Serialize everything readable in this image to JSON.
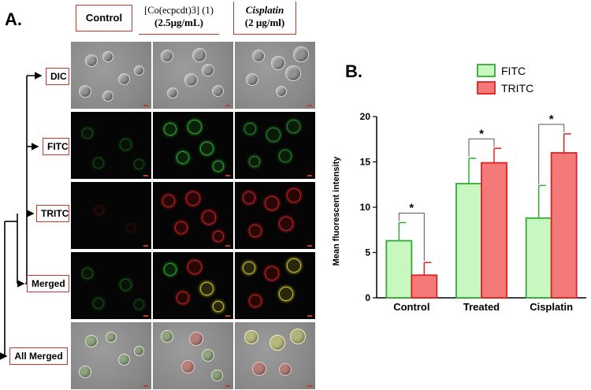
{
  "panel_a_label": "A.",
  "panel_b_label": "B.",
  "column_headers": {
    "control": "Control",
    "complex_line1": "[Co(ecpcdt)3] (1)",
    "complex_line2": "(2.5µg/mL)",
    "cisplatin_line1": "Cisplatin",
    "cisplatin_line2": "(2 µg/ml)"
  },
  "row_labels": {
    "dic": "DIC",
    "fitc": "FITC",
    "tritc": "TRITC",
    "merged": "Merged",
    "all_merged": "All Merged"
  },
  "chart_data": {
    "type": "bar",
    "categories": [
      "Control",
      "Treated",
      "Cisplatin"
    ],
    "series": [
      {
        "name": "FITC",
        "values": [
          6.3,
          12.6,
          8.8
        ],
        "errors": [
          2.0,
          2.8,
          3.6
        ],
        "color": "#c8f7c0",
        "edge": "#33aa33"
      },
      {
        "name": "TRITC",
        "values": [
          2.5,
          14.9,
          16.0
        ],
        "errors": [
          1.4,
          1.6,
          2.1
        ],
        "color": "#f47a7a",
        "edge": "#dd2222"
      }
    ],
    "ylabel": "Mean fluorescent intensity",
    "ylim": [
      0,
      20
    ],
    "yticks": [
      0,
      5,
      10,
      15,
      20
    ],
    "significance": "*",
    "legend_position": "top-center"
  }
}
